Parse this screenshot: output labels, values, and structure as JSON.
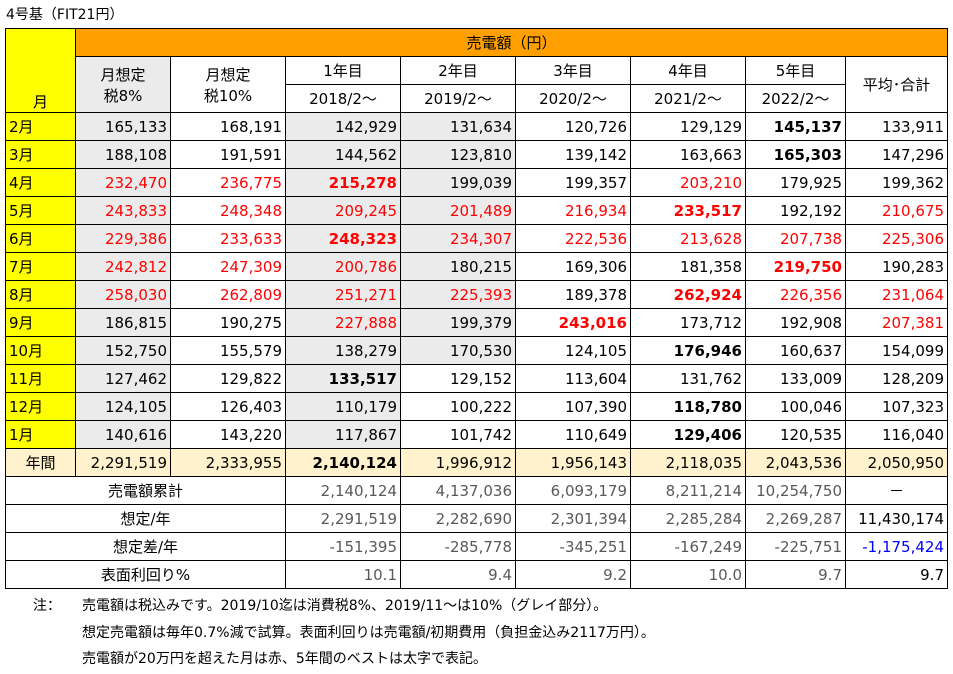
{
  "title": "4号基（FIT21円）",
  "header": {
    "month": "月",
    "revenue": "売電額（円）",
    "est8": [
      "月想定",
      "税8%"
    ],
    "est10": [
      "月想定",
      "税10%"
    ],
    "years": [
      {
        "label": "1年目",
        "start": "2018/2～"
      },
      {
        "label": "2年目",
        "start": "2019/2～"
      },
      {
        "label": "3年目",
        "start": "2020/2～"
      },
      {
        "label": "4年目",
        "start": "2021/2～"
      },
      {
        "label": "5年目",
        "start": "2022/2～"
      }
    ],
    "avg": "平均･合計"
  },
  "rows": [
    {
      "month": "2月",
      "e8": "165,133",
      "e10": "168,191",
      "y": [
        "142,929",
        "131,634",
        "120,726",
        "129,129",
        "145,137"
      ],
      "avg": "133,911"
    },
    {
      "month": "3月",
      "e8": "188,108",
      "e10": "191,591",
      "y": [
        "144,562",
        "123,810",
        "139,142",
        "163,663",
        "165,303"
      ],
      "avg": "147,296"
    },
    {
      "month": "4月",
      "e8": "232,470",
      "e10": "236,775",
      "y": [
        "215,278",
        "199,039",
        "199,357",
        "203,210",
        "179,925"
      ],
      "avg": "199,362"
    },
    {
      "month": "5月",
      "e8": "243,833",
      "e10": "248,348",
      "y": [
        "209,245",
        "201,489",
        "216,934",
        "233,517",
        "192,192"
      ],
      "avg": "210,675"
    },
    {
      "month": "6月",
      "e8": "229,386",
      "e10": "233,633",
      "y": [
        "248,323",
        "234,307",
        "222,536",
        "213,628",
        "207,738"
      ],
      "avg": "225,306"
    },
    {
      "month": "7月",
      "e8": "242,812",
      "e10": "247,309",
      "y": [
        "200,786",
        "180,215",
        "169,306",
        "181,358",
        "219,750"
      ],
      "avg": "190,283"
    },
    {
      "month": "8月",
      "e8": "258,030",
      "e10": "262,809",
      "y": [
        "251,271",
        "225,393",
        "189,378",
        "262,924",
        "226,356"
      ],
      "avg": "231,064"
    },
    {
      "month": "9月",
      "e8": "186,815",
      "e10": "190,275",
      "y": [
        "227,888",
        "199,379",
        "243,016",
        "173,712",
        "192,908"
      ],
      "avg": "207,381"
    },
    {
      "month": "10月",
      "e8": "152,750",
      "e10": "155,579",
      "y": [
        "138,279",
        "170,530",
        "124,105",
        "176,946",
        "160,637"
      ],
      "avg": "154,099"
    },
    {
      "month": "11月",
      "e8": "127,462",
      "e10": "129,822",
      "y": [
        "133,517",
        "129,152",
        "113,604",
        "131,762",
        "133,009"
      ],
      "avg": "128,209"
    },
    {
      "month": "12月",
      "e8": "124,105",
      "e10": "126,403",
      "y": [
        "110,179",
        "100,222",
        "107,390",
        "118,780",
        "100,046"
      ],
      "avg": "107,323"
    },
    {
      "month": "1月",
      "e8": "140,616",
      "e10": "143,220",
      "y": [
        "117,867",
        "101,742",
        "110,649",
        "129,406",
        "120,535"
      ],
      "avg": "116,040"
    }
  ],
  "annual": {
    "label": "年間",
    "e8": "2,291,519",
    "e10": "2,333,955",
    "y": [
      "2,140,124",
      "1,996,912",
      "1,956,143",
      "2,118,035",
      "2,043,536"
    ],
    "avg": "2,050,950"
  },
  "summary": [
    {
      "label": "売電額累計",
      "y": [
        "2,140,124",
        "4,137,036",
        "6,093,179",
        "8,211,214",
        "10,254,750"
      ],
      "total": "－"
    },
    {
      "label": "想定/年",
      "y": [
        "2,291,519",
        "2,282,690",
        "2,301,394",
        "2,285,284",
        "2,269,287"
      ],
      "total": "11,430,174"
    },
    {
      "label": "想定差/年",
      "y": [
        "-151,395",
        "-285,778",
        "-345,251",
        "-167,249",
        "-225,751"
      ],
      "total": "-1,175,424"
    },
    {
      "label": "表面利回り%",
      "y": [
        "10.1",
        "9.4",
        "9.2",
        "10.0",
        "9.7"
      ],
      "total": "9.7"
    }
  ],
  "notes": {
    "label": "注：",
    "lines": [
      "売電額は税込みです。2019/10迄は消費税8%、2019/11～は10%（グレイ部分）。",
      "想定売電額は毎年0.7%減で試算。表面利回りは売電額/初期費用（負担金込み2117万円）。",
      "売電額が20万円を超えた月は赤、5年間のベストは太字で表記。"
    ]
  },
  "colors": {
    "month_bg": "#ffff00",
    "header_bg": "#ffa000",
    "gray_bg": "#ebebeb",
    "annual_bg": "#fff2cc",
    "red": "#ff0000",
    "blue": "#0000ff"
  }
}
